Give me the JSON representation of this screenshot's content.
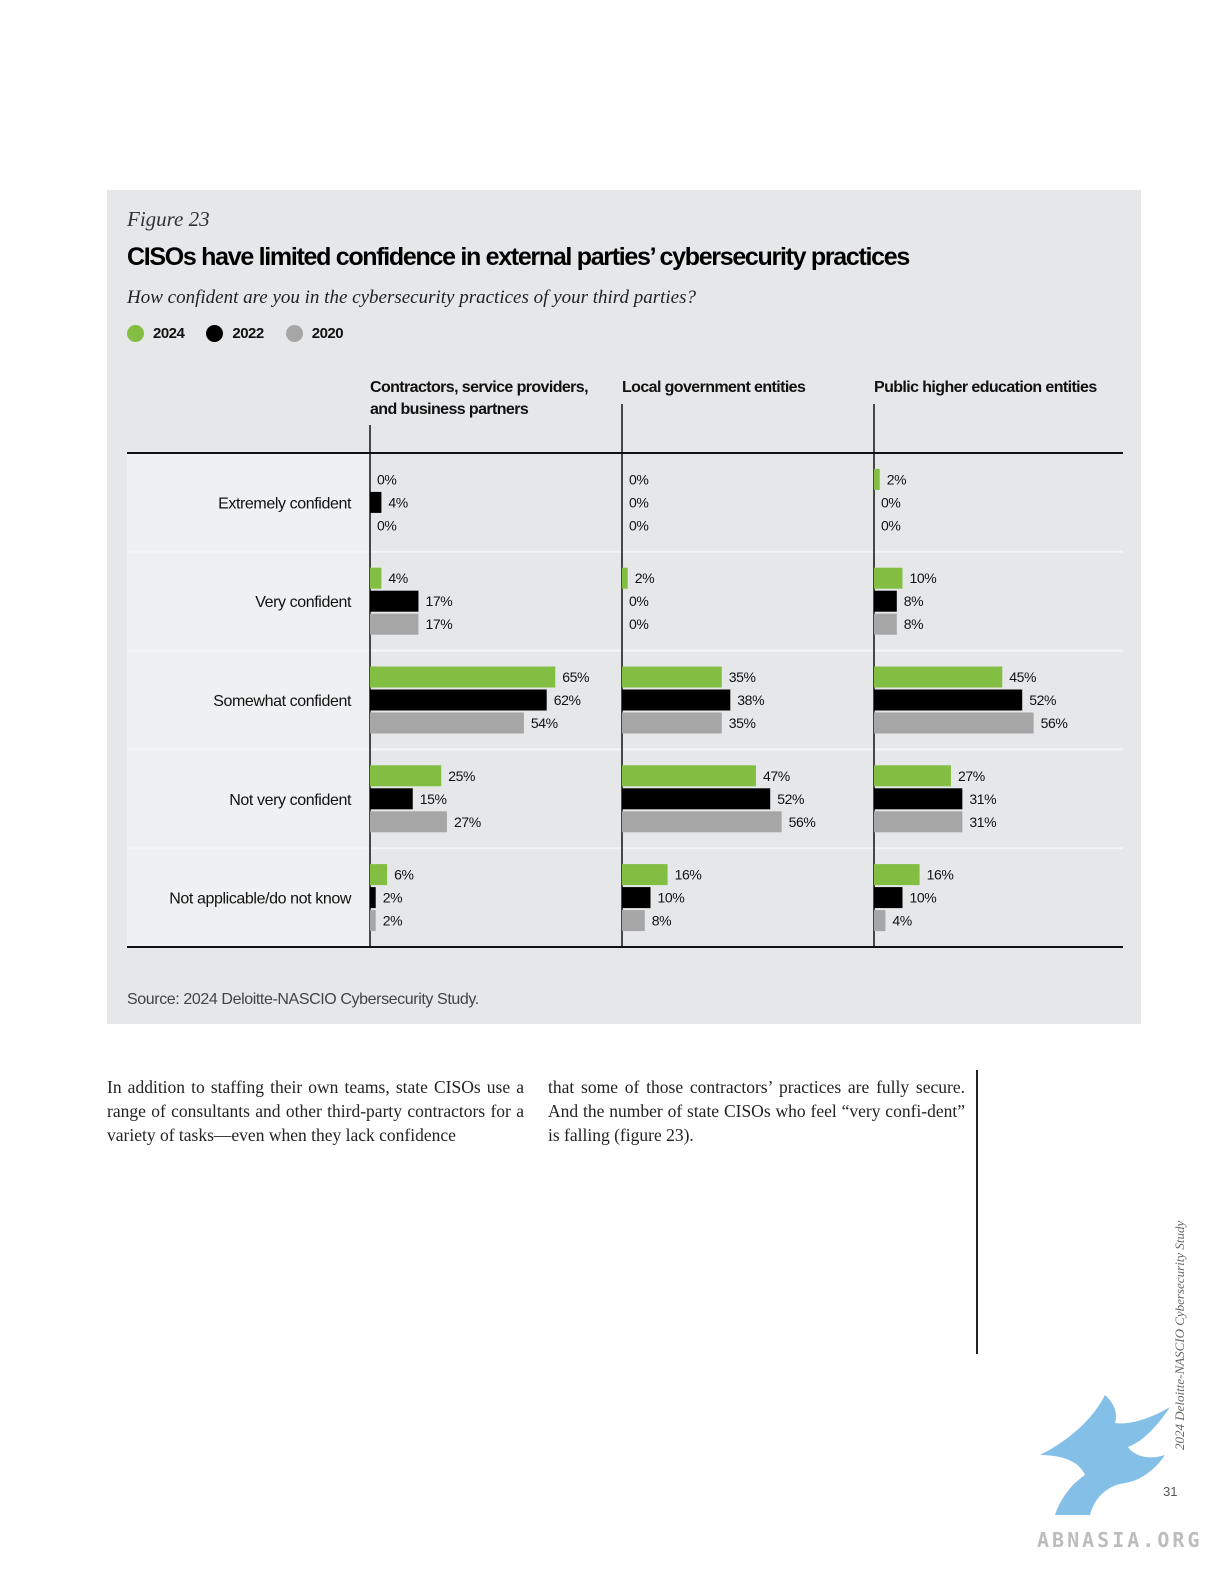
{
  "figure": {
    "label": "Figure 23",
    "title": "CISOs have limited confidence in external parties’ cybersecurity practices",
    "subtitle": "How confident are you in the cybersecurity practices of your third parties?",
    "source": "Source: 2024 Deloitte-NASCIO Cybersecurity Study."
  },
  "colors": {
    "2024": "#82be41",
    "2022": "#000000",
    "2020": "#a6a6a6"
  },
  "chart_data": {
    "type": "bar",
    "orientation": "horizontal",
    "unit": "%",
    "legend_position": "top-left",
    "series": [
      {
        "name": "2024"
      },
      {
        "name": "2022"
      },
      {
        "name": "2020"
      }
    ],
    "categories": [
      "Extremely confident",
      "Very confident",
      "Somewhat confident",
      "Not very confident",
      "Not applicable/do not know"
    ],
    "panels": [
      {
        "title_lines": [
          "Contractors, service providers,",
          "and business partners"
        ],
        "values": [
          [
            0,
            4,
            0
          ],
          [
            4,
            17,
            17
          ],
          [
            65,
            62,
            54
          ],
          [
            25,
            15,
            27
          ],
          [
            6,
            2,
            2
          ]
        ]
      },
      {
        "title_lines": [
          "Local government entities"
        ],
        "values": [
          [
            0,
            0,
            0
          ],
          [
            2,
            0,
            0
          ],
          [
            35,
            38,
            35
          ],
          [
            47,
            52,
            56
          ],
          [
            16,
            10,
            8
          ]
        ]
      },
      {
        "title_lines": [
          "Public higher education entities"
        ],
        "values": [
          [
            2,
            0,
            0
          ],
          [
            10,
            8,
            8
          ],
          [
            45,
            52,
            56
          ],
          [
            27,
            31,
            31
          ],
          [
            16,
            10,
            4
          ]
        ]
      }
    ]
  },
  "body": {
    "col1": "In addition to staffing their own teams, state CISOs use a range of consultants and other third-party contractors for a variety of tasks—even when they lack confidence",
    "col2": "that some of those contractors’ practices are fully secure. And the number of state CISOs who feel “very confi-dent” is falling (figure 23)."
  },
  "side_caption": "2024 Deloitte-NASCIO Cybersecurity Study",
  "page_number": "31",
  "watermark": {
    "text": "ABNASIA.ORG",
    "icon": "griffin-logo-icon"
  }
}
